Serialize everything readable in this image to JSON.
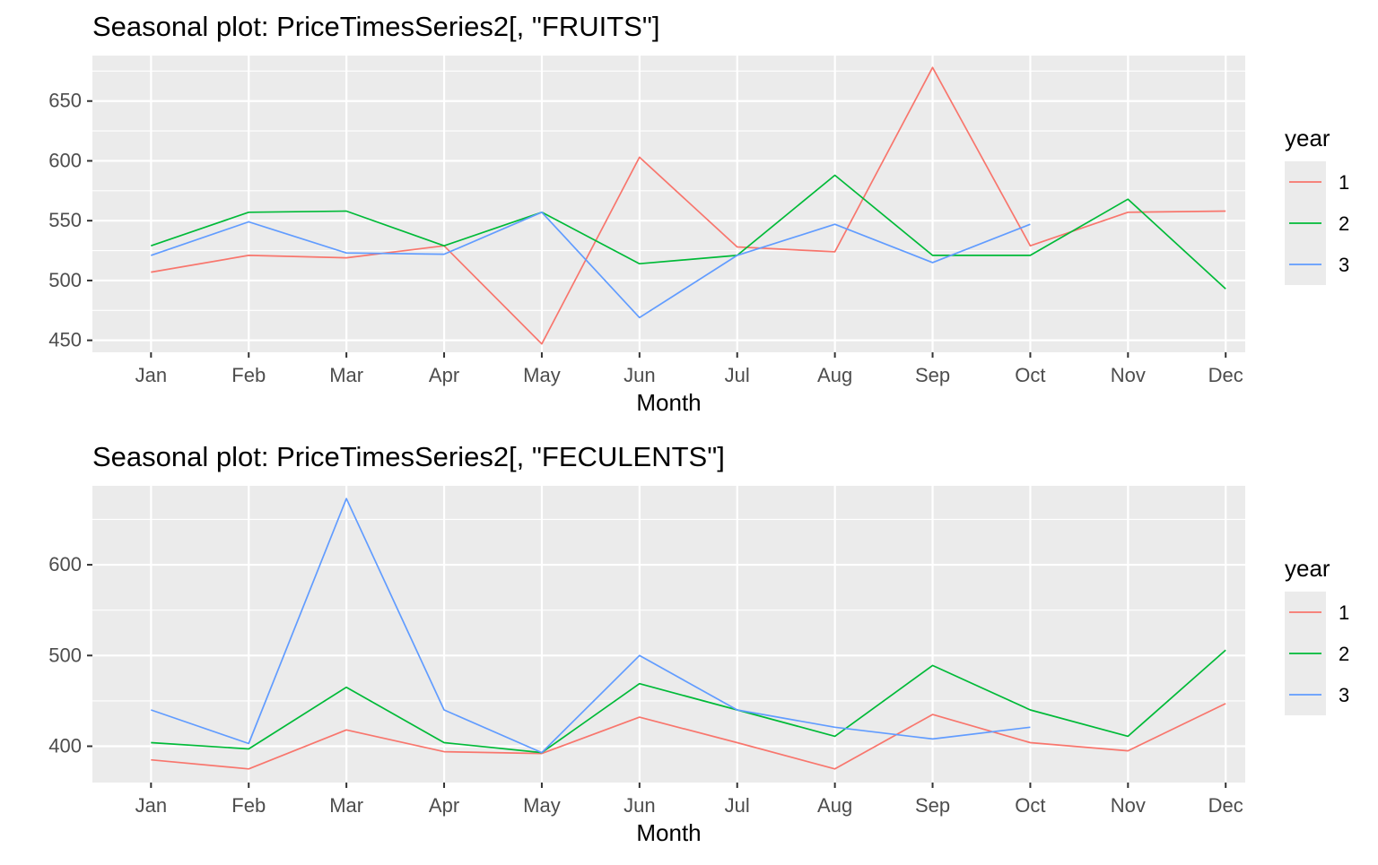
{
  "chart_data": [
    {
      "type": "line",
      "title": "Seasonal plot: PriceTimesSeries2[, \"FRUITS\"]",
      "xlabel": "Month",
      "ylabel": "",
      "categories": [
        "Jan",
        "Feb",
        "Mar",
        "Apr",
        "May",
        "Jun",
        "Jul",
        "Aug",
        "Sep",
        "Oct",
        "Nov",
        "Dec"
      ],
      "ylim": [
        440,
        688
      ],
      "yticks": [
        450,
        500,
        550,
        600,
        650
      ],
      "grid": true,
      "legend": {
        "title": "year",
        "position": "right",
        "entries": [
          "1",
          "2",
          "3"
        ]
      },
      "series": [
        {
          "name": "1",
          "color": "#F8766D",
          "values": [
            507,
            521,
            519,
            529,
            447,
            603,
            528,
            524,
            678,
            529,
            557,
            558
          ]
        },
        {
          "name": "2",
          "color": "#00BA38",
          "values": [
            529,
            557,
            558,
            529,
            557,
            514,
            521,
            588,
            521,
            521,
            568,
            493
          ]
        },
        {
          "name": "3",
          "color": "#619CFF",
          "values": [
            521,
            549,
            523,
            522,
            557,
            469,
            521,
            547,
            515,
            547,
            null,
            null
          ]
        }
      ]
    },
    {
      "type": "line",
      "title": "Seasonal plot: PriceTimesSeries2[, \"FECULENTS\"]",
      "xlabel": "Month",
      "ylabel": "",
      "categories": [
        "Jan",
        "Feb",
        "Mar",
        "Apr",
        "May",
        "Jun",
        "Jul",
        "Aug",
        "Sep",
        "Oct",
        "Nov",
        "Dec"
      ],
      "ylim": [
        360,
        687
      ],
      "yticks": [
        400,
        500,
        600
      ],
      "grid": true,
      "legend": {
        "title": "year",
        "position": "right",
        "entries": [
          "1",
          "2",
          "3"
        ]
      },
      "series": [
        {
          "name": "1",
          "color": "#F8766D",
          "values": [
            385,
            375,
            418,
            394,
            392,
            432,
            404,
            375,
            435,
            404,
            395,
            447
          ]
        },
        {
          "name": "2",
          "color": "#00BA38",
          "values": [
            404,
            397,
            465,
            404,
            393,
            469,
            440,
            411,
            489,
            440,
            411,
            506
          ]
        },
        {
          "name": "3",
          "color": "#619CFF",
          "values": [
            440,
            403,
            673,
            440,
            393,
            500,
            440,
            421,
            408,
            421,
            null,
            null
          ]
        }
      ]
    }
  ]
}
